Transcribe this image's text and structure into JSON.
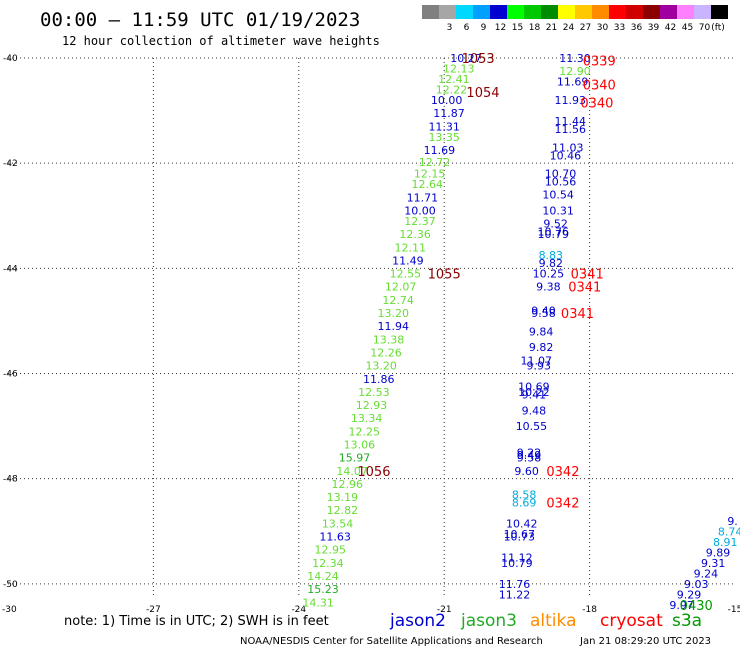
{
  "header": {
    "title": "00:00 – 11:59 UTC 01/19/2023",
    "subtitle": "12 hour collection of altimeter wave heights"
  },
  "legend": {
    "unit_label": "(ft)",
    "bins": [
      {
        "label": "",
        "color": "#808080"
      },
      {
        "label": "3",
        "color": "#a6a6a6"
      },
      {
        "label": "6",
        "color": "#00d8ff"
      },
      {
        "label": "9",
        "color": "#00a0ff"
      },
      {
        "label": "12",
        "color": "#0000d0"
      },
      {
        "label": "15",
        "color": "#00ff00"
      },
      {
        "label": "18",
        "color": "#00c800"
      },
      {
        "label": "21",
        "color": "#008c00"
      },
      {
        "label": "24",
        "color": "#ffff00"
      },
      {
        "label": "27",
        "color": "#ffc800"
      },
      {
        "label": "30",
        "color": "#ff8c00"
      },
      {
        "label": "33",
        "color": "#ff0000"
      },
      {
        "label": "36",
        "color": "#d00000"
      },
      {
        "label": "39",
        "color": "#8c0000"
      },
      {
        "label": "42",
        "color": "#a000a0"
      },
      {
        "label": "45",
        "color": "#ff80ff"
      },
      {
        "label": "70",
        "color": "#c8b4ff"
      },
      {
        "label": "",
        "color": "#000000"
      }
    ]
  },
  "axes": {
    "x_ticks": [
      "-27",
      "-24",
      "-21",
      "-18",
      "-15"
    ],
    "y_ticks": [
      "-40",
      "-42",
      "-44",
      "-46",
      "-48",
      "-50"
    ],
    "x_range": [
      -30,
      -15
    ],
    "y_range": [
      -50.25,
      -40
    ]
  },
  "colors": {
    "jason2": "#0000cc",
    "jason3": "#22aa22",
    "altika": "#ff8c00",
    "cryosat": "#ff0000",
    "s3a": "#009900",
    "grid": "#333333"
  },
  "tracks": [
    {
      "name": "pass-1055",
      "points": [
        {
          "lat": -40.0,
          "lon": -20.55,
          "v": "10.27",
          "c": "#0000cc"
        },
        {
          "lat": -40.2,
          "lon": -20.7,
          "v": "12.13",
          "c": "#66dd33"
        },
        {
          "lat": -40.4,
          "lon": -20.8,
          "v": "12.41",
          "c": "#66dd33"
        },
        {
          "lat": -40.6,
          "lon": -20.85,
          "v": "12.22",
          "c": "#66dd33"
        },
        {
          "lat": -40.8,
          "lon": -20.95,
          "v": "10.00",
          "c": "#0000cc"
        },
        {
          "lat": -41.05,
          "lon": -20.9,
          "v": "11.87",
          "c": "#0000cc"
        },
        {
          "lat": -41.3,
          "lon": -21.0,
          "v": "11.31",
          "c": "#0000cc"
        },
        {
          "lat": -41.5,
          "lon": -21.0,
          "v": "13.35",
          "c": "#66dd33"
        },
        {
          "lat": -41.75,
          "lon": -21.1,
          "v": "11.69",
          "c": "#0000cc"
        },
        {
          "lat": -41.98,
          "lon": -21.2,
          "v": "12.72",
          "c": "#66dd33"
        },
        {
          "lat": -42.2,
          "lon": -21.3,
          "v": "12.15",
          "c": "#66dd33"
        },
        {
          "lat": -42.4,
          "lon": -21.35,
          "v": "12.64",
          "c": "#66dd33"
        },
        {
          "lat": -42.65,
          "lon": -21.45,
          "v": "11.71",
          "c": "#0000cc"
        },
        {
          "lat": -42.9,
          "lon": -21.5,
          "v": "10.00",
          "c": "#0000cc"
        },
        {
          "lat": -43.1,
          "lon": -21.5,
          "v": "12.37",
          "c": "#66dd33"
        },
        {
          "lat": -43.35,
          "lon": -21.6,
          "v": "12.36",
          "c": "#66dd33"
        },
        {
          "lat": -43.6,
          "lon": -21.7,
          "v": "12.11",
          "c": "#66dd33"
        },
        {
          "lat": -43.85,
          "lon": -21.75,
          "v": "11.49",
          "c": "#0000cc"
        },
        {
          "lat": -44.1,
          "lon": -21.8,
          "v": "12.55",
          "c": "#66dd33"
        },
        {
          "lat": -44.35,
          "lon": -21.9,
          "v": "12.07",
          "c": "#66dd33"
        },
        {
          "lat": -44.6,
          "lon": -21.95,
          "v": "12.74",
          "c": "#66dd33"
        },
        {
          "lat": -44.85,
          "lon": -22.05,
          "v": "13.20",
          "c": "#66dd33"
        },
        {
          "lat": -45.1,
          "lon": -22.05,
          "v": "11.94",
          "c": "#0000cc"
        },
        {
          "lat": -45.35,
          "lon": -22.15,
          "v": "13.38",
          "c": "#66dd33"
        },
        {
          "lat": -45.6,
          "lon": -22.2,
          "v": "12.26",
          "c": "#66dd33"
        },
        {
          "lat": -45.85,
          "lon": -22.3,
          "v": "13.20",
          "c": "#66dd33"
        },
        {
          "lat": -46.1,
          "lon": -22.35,
          "v": "11.86",
          "c": "#0000cc"
        },
        {
          "lat": -46.35,
          "lon": -22.45,
          "v": "12.53",
          "c": "#66dd33"
        },
        {
          "lat": -46.6,
          "lon": -22.5,
          "v": "12.93",
          "c": "#66dd33"
        },
        {
          "lat": -46.85,
          "lon": -22.6,
          "v": "13.34",
          "c": "#66dd33"
        },
        {
          "lat": -47.1,
          "lon": -22.65,
          "v": "12.25",
          "c": "#66dd33"
        },
        {
          "lat": -47.35,
          "lon": -22.75,
          "v": "13.06",
          "c": "#66dd33"
        },
        {
          "lat": -47.6,
          "lon": -22.85,
          "v": "15.97",
          "c": "#22aa22"
        },
        {
          "lat": -47.85,
          "lon": -22.9,
          "v": "14.07",
          "c": "#66dd33"
        },
        {
          "lat": -48.1,
          "lon": -23.0,
          "v": "12.96",
          "c": "#66dd33"
        },
        {
          "lat": -48.35,
          "lon": -23.1,
          "v": "13.19",
          "c": "#66dd33"
        },
        {
          "lat": -48.6,
          "lon": -23.1,
          "v": "12.82",
          "c": "#66dd33"
        },
        {
          "lat": -48.85,
          "lon": -23.2,
          "v": "13.54",
          "c": "#66dd33"
        },
        {
          "lat": -49.1,
          "lon": -23.25,
          "v": "11.63",
          "c": "#0000cc"
        },
        {
          "lat": -49.35,
          "lon": -23.35,
          "v": "12.95",
          "c": "#66dd33"
        },
        {
          "lat": -49.6,
          "lon": -23.4,
          "v": "12.34",
          "c": "#66dd33"
        },
        {
          "lat": -49.85,
          "lon": -23.5,
          "v": "14.24",
          "c": "#66dd33"
        },
        {
          "lat": -50.1,
          "lon": -23.5,
          "v": "15.23",
          "c": "#22aa22"
        },
        {
          "lat": -50.35,
          "lon": -23.6,
          "v": "14.31",
          "c": "#66dd33"
        }
      ]
    },
    {
      "name": "pass-0340",
      "points": [
        {
          "lat": -40.0,
          "lon": -18.3,
          "v": "11.30",
          "c": "#0000cc"
        },
        {
          "lat": -40.25,
          "lon": -18.3,
          "v": "12.90",
          "c": "#66dd33"
        },
        {
          "lat": -40.45,
          "lon": -18.35,
          "v": "11.69",
          "c": "#0000cc"
        },
        {
          "lat": -40.8,
          "lon": -18.4,
          "v": "11.93",
          "c": "#0000cc"
        },
        {
          "lat": -41.2,
          "lon": -18.4,
          "v": "11.44",
          "c": "#0000cc"
        },
        {
          "lat": -41.35,
          "lon": -18.4,
          "v": "11.56",
          "c": "#0000cc"
        },
        {
          "lat": -41.7,
          "lon": -18.45,
          "v": "11.03",
          "c": "#0000cc"
        },
        {
          "lat": -41.85,
          "lon": -18.5,
          "v": "10.46",
          "c": "#0000cc"
        },
        {
          "lat": -42.2,
          "lon": -18.6,
          "v": "10.70",
          "c": "#0000cc"
        },
        {
          "lat": -42.35,
          "lon": -18.6,
          "v": "10.56",
          "c": "#0000cc"
        },
        {
          "lat": -42.6,
          "lon": -18.65,
          "v": "10.54",
          "c": "#0000cc"
        },
        {
          "lat": -42.9,
          "lon": -18.65,
          "v": "10.31",
          "c": "#0000cc"
        },
        {
          "lat": -43.15,
          "lon": -18.7,
          "v": "9.52",
          "c": "#0000cc"
        },
        {
          "lat": -43.3,
          "lon": -18.75,
          "v": "10.76",
          "c": "#0000cc"
        },
        {
          "lat": -43.35,
          "lon": -18.75,
          "v": "10.79",
          "c": "#0000cc"
        },
        {
          "lat": -43.75,
          "lon": -18.8,
          "v": "8.83",
          "c": "#00aadd"
        },
        {
          "lat": -43.9,
          "lon": -18.8,
          "v": "9.82",
          "c": "#0000cc"
        },
        {
          "lat": -44.1,
          "lon": -18.85,
          "v": "10.25",
          "c": "#0000cc"
        },
        {
          "lat": -44.35,
          "lon": -18.85,
          "v": "9.38",
          "c": "#0000cc"
        },
        {
          "lat": -44.8,
          "lon": -18.95,
          "v": "9.40",
          "c": "#0000cc"
        },
        {
          "lat": -44.85,
          "lon": -18.95,
          "v": "9.58",
          "c": "#0000cc"
        },
        {
          "lat": -45.2,
          "lon": -19.0,
          "v": "9.84",
          "c": "#0000cc"
        },
        {
          "lat": -45.5,
          "lon": -19.0,
          "v": "9.82",
          "c": "#0000cc"
        },
        {
          "lat": -45.75,
          "lon": -19.1,
          "v": "11.07",
          "c": "#0000cc"
        },
        {
          "lat": -45.85,
          "lon": -19.05,
          "v": "9.93",
          "c": "#0000cc"
        },
        {
          "lat": -46.25,
          "lon": -19.15,
          "v": "10.69",
          "c": "#0000cc"
        },
        {
          "lat": -46.35,
          "lon": -19.15,
          "v": "10.22",
          "c": "#0000cc"
        },
        {
          "lat": -46.4,
          "lon": -19.15,
          "v": "9.41",
          "c": "#0000cc"
        },
        {
          "lat": -46.7,
          "lon": -19.15,
          "v": "9.48",
          "c": "#0000cc"
        },
        {
          "lat": -47.0,
          "lon": -19.2,
          "v": "10.55",
          "c": "#0000cc"
        },
        {
          "lat": -47.5,
          "lon": -19.25,
          "v": "9.22",
          "c": "#0000cc"
        },
        {
          "lat": -47.55,
          "lon": -19.25,
          "v": "9.49",
          "c": "#0000cc"
        },
        {
          "lat": -47.6,
          "lon": -19.25,
          "v": "9.58",
          "c": "#0000cc"
        },
        {
          "lat": -47.85,
          "lon": -19.3,
          "v": "9.60",
          "c": "#0000cc"
        },
        {
          "lat": -48.3,
          "lon": -19.35,
          "v": "8.58",
          "c": "#00aadd"
        },
        {
          "lat": -48.45,
          "lon": -19.35,
          "v": "8.69",
          "c": "#00aadd"
        },
        {
          "lat": -48.85,
          "lon": -19.4,
          "v": "10.42",
          "c": "#0000cc"
        },
        {
          "lat": -49.05,
          "lon": -19.45,
          "v": "10.67",
          "c": "#0000cc"
        },
        {
          "lat": -49.1,
          "lon": -19.45,
          "v": "10.73",
          "c": "#0000cc"
        },
        {
          "lat": -49.5,
          "lon": -19.5,
          "v": "11.12",
          "c": "#0000cc"
        },
        {
          "lat": -49.6,
          "lon": -19.5,
          "v": "10.79",
          "c": "#0000cc"
        },
        {
          "lat": -50.0,
          "lon": -19.55,
          "v": "11.76",
          "c": "#0000cc"
        },
        {
          "lat": -50.2,
          "lon": -19.55,
          "v": "11.22",
          "c": "#0000cc"
        }
      ]
    },
    {
      "name": "pass-0430",
      "points": [
        {
          "lat": -48.8,
          "lon": -15.05,
          "v": "9.",
          "c": "#0000cc"
        },
        {
          "lat": -49.0,
          "lon": -15.1,
          "v": "8.74",
          "c": "#00aadd"
        },
        {
          "lat": -49.2,
          "lon": -15.2,
          "v": "8.91",
          "c": "#00aadd"
        },
        {
          "lat": -49.4,
          "lon": -15.35,
          "v": "9.89",
          "c": "#0000cc"
        },
        {
          "lat": -49.6,
          "lon": -15.45,
          "v": "9.31",
          "c": "#0000cc"
        },
        {
          "lat": -49.8,
          "lon": -15.6,
          "v": "9.24",
          "c": "#0000cc"
        },
        {
          "lat": -50.0,
          "lon": -15.8,
          "v": "9.03",
          "c": "#0000cc"
        },
        {
          "lat": -50.2,
          "lon": -15.95,
          "v": "9.29",
          "c": "#0000cc"
        },
        {
          "lat": -50.4,
          "lon": -16.1,
          "v": "9.97",
          "c": "#0000cc"
        }
      ]
    }
  ],
  "time_labels": [
    {
      "text": "1053",
      "lat": -40.0,
      "lon": -20.3,
      "c": "#880000"
    },
    {
      "text": "1054",
      "lat": -40.65,
      "lon": -20.2,
      "c": "#880000"
    },
    {
      "text": "1055",
      "lat": -44.1,
      "lon": -21.0,
      "c": "#880000"
    },
    {
      "text": "1056",
      "lat": -47.85,
      "lon": -22.45,
      "c": "#880000"
    },
    {
      "text": "0339",
      "lat": -40.05,
      "lon": -17.8,
      "c": "#ff0000"
    },
    {
      "text": "0340",
      "lat": -40.5,
      "lon": -17.8,
      "c": "#ff0000"
    },
    {
      "text": "0340",
      "lat": -40.85,
      "lon": -17.85,
      "c": "#ff0000"
    },
    {
      "text": "0341",
      "lat": -44.1,
      "lon": -18.05,
      "c": "#ff0000"
    },
    {
      "text": "0341",
      "lat": -44.35,
      "lon": -18.1,
      "c": "#ff0000"
    },
    {
      "text": "0341",
      "lat": -44.85,
      "lon": -18.25,
      "c": "#ff0000"
    },
    {
      "text": "0342",
      "lat": -47.85,
      "lon": -18.55,
      "c": "#ff0000"
    },
    {
      "text": "0342",
      "lat": -48.45,
      "lon": -18.55,
      "c": "#ff0000"
    },
    {
      "text": "0430",
      "lat": -50.4,
      "lon": -15.8,
      "c": "#009900"
    }
  ],
  "footer": {
    "note": "note: 1) Time is in UTC; 2) SWH is in feet",
    "satellites": [
      {
        "name": "jason2",
        "color": "#0000cc"
      },
      {
        "name": "jason3",
        "color": "#22aa22"
      },
      {
        "name": "altika",
        "color": "#ff8c00"
      },
      {
        "name": "cryosat",
        "color": "#ff0000"
      },
      {
        "name": "s3a",
        "color": "#009900"
      }
    ],
    "credit": "NOAA/NESDIS Center for Satellite Applications and Research",
    "timestamp": "Jan 21 08:29:20 UTC 2023"
  }
}
